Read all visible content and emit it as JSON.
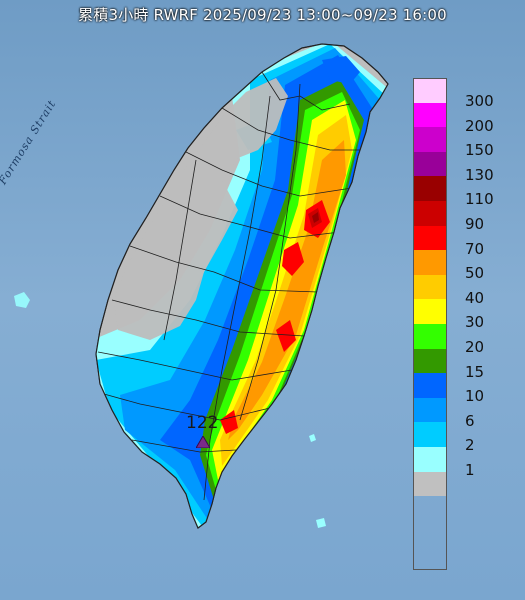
{
  "title": "累積3小時 RWRF 2025/09/23 13:00~09/23 16:00",
  "strait_label": "Formosa Strait",
  "peak": {
    "value": "122",
    "marker_color": "#7a2a8a"
  },
  "legend": [
    {
      "value": "300",
      "color": "#ffccff"
    },
    {
      "value": "200",
      "color": "#ff00ff"
    },
    {
      "value": "150",
      "color": "#cc00cc"
    },
    {
      "value": "130",
      "color": "#990099"
    },
    {
      "value": "110",
      "color": "#990000"
    },
    {
      "value": "90",
      "color": "#cc0000"
    },
    {
      "value": "70",
      "color": "#ff0000"
    },
    {
      "value": "50",
      "color": "#ff9900"
    },
    {
      "value": "40",
      "color": "#ffcc00"
    },
    {
      "value": "30",
      "color": "#ffff00"
    },
    {
      "value": "20",
      "color": "#33ff00"
    },
    {
      "value": "15",
      "color": "#339900"
    },
    {
      "value": "10",
      "color": "#0066ff"
    },
    {
      "value": "6",
      "color": "#0099ff"
    },
    {
      "value": "2",
      "color": "#00ccff"
    },
    {
      "value": "1",
      "color": "#99ffff"
    },
    {
      "value": "",
      "color": "#c0c0c0"
    }
  ],
  "colors": {
    "sea": "#7fa6c8",
    "land_dry": "#bdbdbd",
    "boundary": "#2a2a2a"
  }
}
